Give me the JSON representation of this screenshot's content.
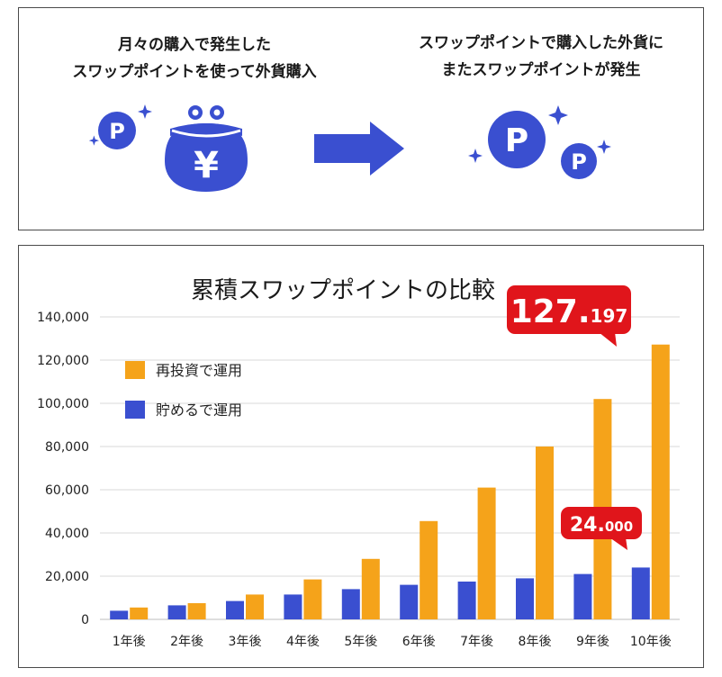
{
  "top_panel": {
    "left_caption_line1": "月々の購入で発生した",
    "left_caption_line2": "スワップポイントを使って外貨購入",
    "right_caption_line1": "スワップポイントで購入した外貨に",
    "right_caption_line2": "またスワップポイントが発生",
    "point_glyph": "P",
    "yen_glyph": "¥"
  },
  "colors": {
    "blue": "#3a4fd0",
    "orange": "#f5a31a",
    "callout_red": "#e0151b",
    "grid": "#d9d9d9"
  },
  "chart_data": {
    "type": "bar",
    "title": "累積スワップポイントの比較",
    "categories": [
      "1年後",
      "2年後",
      "3年後",
      "4年後",
      "5年後",
      "6年後",
      "7年後",
      "8年後",
      "9年後",
      "10年後"
    ],
    "series": [
      {
        "name": "再投資で運用",
        "color": "#f5a31a",
        "values": [
          5500,
          7500,
          11500,
          18500,
          28000,
          45500,
          61000,
          80000,
          102000,
          127197
        ]
      },
      {
        "name": "貯めるで運用",
        "color": "#3a4fd0",
        "values": [
          4000,
          6500,
          8500,
          11500,
          14000,
          16000,
          17500,
          19000,
          21000,
          24000
        ]
      }
    ],
    "ylim": [
      0,
      140000
    ],
    "yticks": [
      "0",
      "20,000",
      "40,000",
      "60,000",
      "80,000",
      "100,000",
      "120,000",
      "140,000"
    ],
    "ytick_values": [
      0,
      20000,
      40000,
      60000,
      80000,
      100000,
      120000,
      140000
    ],
    "grid": true,
    "legend_position": "top-left",
    "annotations": [
      {
        "series": "再投資で運用",
        "category": "10年後",
        "text_main": "127.",
        "text_small": "197"
      },
      {
        "series": "貯めるで運用",
        "category": "10年後",
        "text_main": "24.",
        "text_small": "000"
      }
    ]
  }
}
